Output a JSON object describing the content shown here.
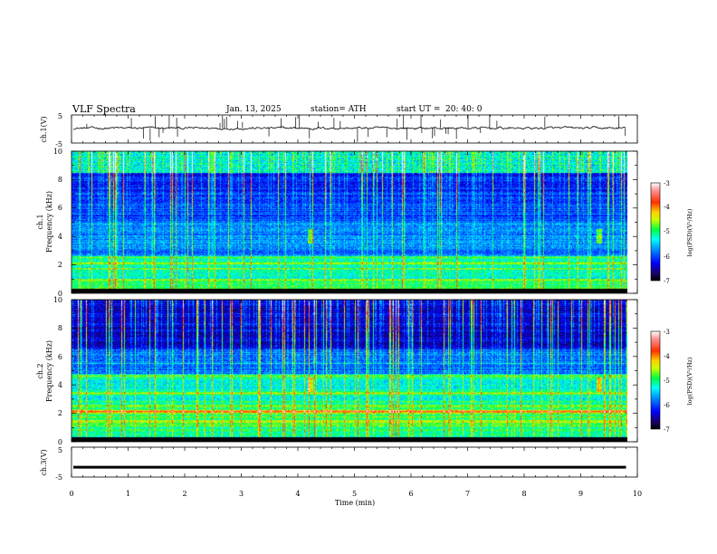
{
  "header": {
    "title": "VLF  Spectra",
    "date": "Jan.  13,  2025",
    "station": "station= ATH",
    "start_label": "start  UT  =",
    "start_value": "20: 40: 0"
  },
  "colors": {
    "trace": "#000000",
    "colormap": [
      "#000000",
      "#1a0070",
      "#0000ff",
      "#0090ff",
      "#00ffff",
      "#00ff40",
      "#c8ff00",
      "#ffd000",
      "#ff3000",
      "#ff9090",
      "#ffffff"
    ]
  },
  "chart_data": [
    {
      "id": "ch1_waveform",
      "type": "line",
      "ylabel": "ch.1(V)",
      "ylim": [
        -5,
        5
      ],
      "yticks": [
        "5",
        "-5"
      ],
      "xlim": [
        0,
        10
      ],
      "series": [
        {
          "baseline": 0.3,
          "noise": 0.8
        }
      ]
    },
    {
      "id": "ch1_spectrogram",
      "type": "heatmap",
      "ylabel_line1": "ch.1",
      "ylabel_line2": "Frequency  (kHz)",
      "ylim": [
        0,
        10
      ],
      "yticks": [
        "0",
        "2",
        "4",
        "6",
        "8",
        "10"
      ],
      "xlim": [
        0,
        10
      ],
      "data_extent_x": [
        0,
        9.8
      ],
      "colorbar": {
        "label": "log(PSD)(V²/Hz)",
        "range": [
          -7,
          -3
        ],
        "ticks": [
          "-3",
          "-4",
          "-5",
          "-6",
          "-7"
        ]
      }
    },
    {
      "id": "ch2_spectrogram",
      "type": "heatmap",
      "ylabel_line1": "ch.2",
      "ylabel_line2": "Frequency  (kHz)",
      "ylim": [
        0,
        10
      ],
      "yticks": [
        "0",
        "2",
        "4",
        "6",
        "8",
        "10"
      ],
      "xlim": [
        0,
        10
      ],
      "data_extent_x": [
        0,
        9.8
      ],
      "colorbar": {
        "label": "log(PSD)(V²/Hz)",
        "range": [
          -7,
          -3
        ],
        "ticks": [
          "-3",
          "-4",
          "-5",
          "-6",
          "-7"
        ]
      }
    },
    {
      "id": "ch3_waveform",
      "type": "line",
      "ylabel": "ch.3(V)",
      "ylim": [
        -5,
        5
      ],
      "yticks": [
        "5",
        "-5"
      ],
      "xlim": [
        0,
        10
      ],
      "xlabel": "Time  (min)",
      "xticks": [
        "0",
        "1",
        "2",
        "3",
        "4",
        "5",
        "6",
        "7",
        "8",
        "9",
        "10"
      ],
      "series": [
        {
          "baseline": -1.7,
          "noise": 0.15
        }
      ]
    }
  ]
}
